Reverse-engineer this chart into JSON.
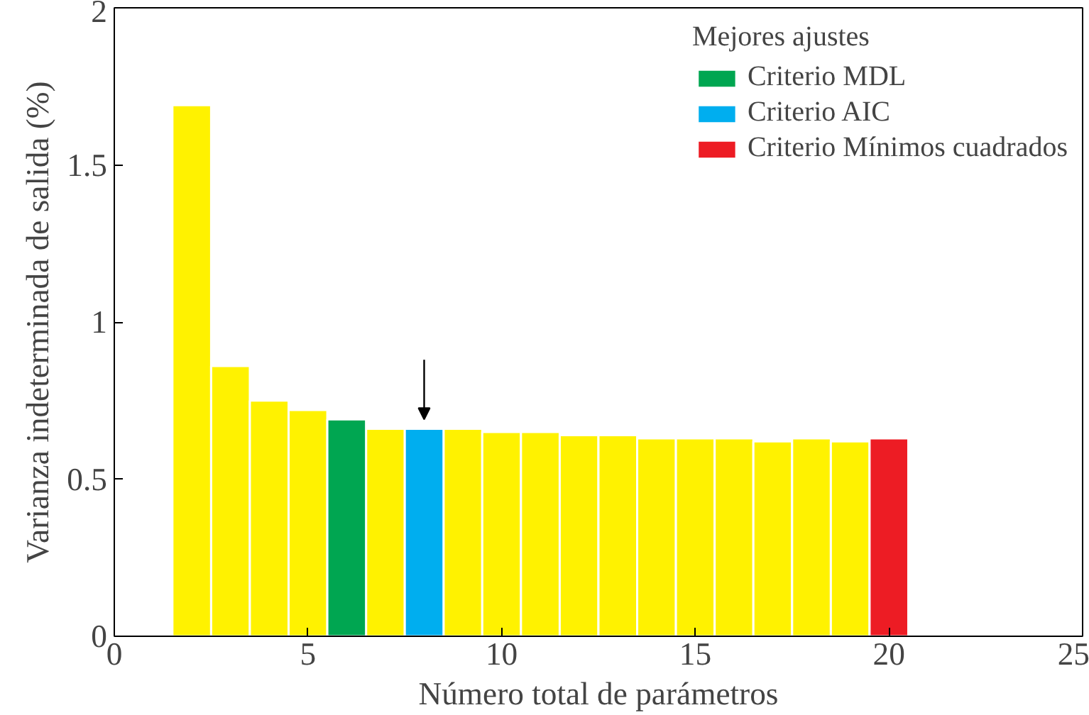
{
  "chart_data": {
    "type": "bar",
    "xlabel": "Número total de parámetros",
    "ylabel": "Varianza indeterminada de salida (%)",
    "legend_title": "Mejores ajustes",
    "legend": "top right",
    "xlim": [
      0,
      25
    ],
    "xticks": [
      0,
      5,
      10,
      15,
      20,
      25
    ],
    "ylim": [
      0,
      2
    ],
    "yticks": [
      0,
      0.5,
      1,
      1.5,
      2
    ],
    "grid": false,
    "series": [
      {
        "color": "#fff200",
        "x": [
          2,
          3,
          4,
          5,
          7,
          9,
          10,
          11,
          12,
          13,
          14,
          15,
          16,
          17,
          18,
          19
        ],
        "values": [
          1.69,
          0.86,
          0.75,
          0.72,
          0.66,
          0.66,
          0.65,
          0.65,
          0.64,
          0.64,
          0.63,
          0.63,
          0.63,
          0.62,
          0.63,
          0.62
        ]
      },
      {
        "name": "Criterio MDL",
        "color": "#00a651",
        "x": [
          6
        ],
        "values": [
          0.69
        ]
      },
      {
        "name": "Criterio AIC",
        "color": "#00aeef",
        "x": [
          8
        ],
        "values": [
          0.66
        ]
      },
      {
        "name": "Criterio Mínimos cuadrados",
        "color": "#ed1c24",
        "x": [
          20
        ],
        "values": [
          0.63
        ]
      }
    ]
  }
}
